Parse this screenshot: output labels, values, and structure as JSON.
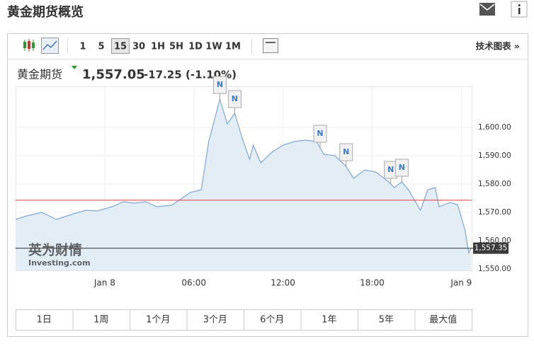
{
  "header": {
    "title": "黄金期货概览"
  },
  "toolbar": {
    "intervals": [
      "1",
      "5",
      "15",
      "30",
      "1H",
      "5H",
      "1D",
      "1W",
      "1M"
    ],
    "selected_interval": "15",
    "link": "技术图表 »"
  },
  "quote": {
    "name": "黄金期货",
    "price": "1,557.05",
    "change": "-17.25",
    "change_percent": "(-1.10%)"
  },
  "chart_data": {
    "type": "line",
    "x": [
      -6,
      -5.25,
      -4.25,
      -3.25,
      -2.25,
      -1.25,
      -0.5,
      0.5,
      1.25,
      2,
      2.75,
      3.5,
      4.5,
      5,
      5.75,
      6.5,
      7,
      7.5,
      7.75,
      8.25,
      8.75,
      9.25,
      9.75,
      10,
      10.5,
      11.25,
      12,
      12.75,
      13.5,
      14.25,
      14.75,
      15.5,
      16.25,
      16.75,
      17.5,
      18.25,
      19,
      19.5,
      20,
      20.5,
      21.25,
      21.75,
      22.25,
      22.5,
      23.25,
      23.75,
      24.25,
      24.5,
      24.65
    ],
    "series": [
      {
        "name": "黄金期货",
        "color": "#7fa7d1",
        "values": [
          1567.5,
          1568.75,
          1570,
          1567.5,
          1569.25,
          1570.75,
          1570.5,
          1572,
          1573.75,
          1573.25,
          1573.75,
          1572,
          1572.5,
          1574.25,
          1577,
          1578,
          1595,
          1605,
          1610,
          1601.25,
          1605,
          1596.25,
          1588.75,
          1593.75,
          1587.5,
          1591.25,
          1593.75,
          1595,
          1595.5,
          1595,
          1590.5,
          1590,
          1586.25,
          1582,
          1585,
          1584.25,
          1581.25,
          1578.75,
          1580.75,
          1577.5,
          1570.75,
          1578,
          1578.75,
          1572,
          1573.5,
          1572.75,
          1563.75,
          1555.75,
          1557.35
        ]
      }
    ],
    "xlim": [
      -6,
      24.7
    ],
    "xticks": [
      {
        "value": 0,
        "label": "Jan 8"
      },
      {
        "value": 6,
        "label": "06:00"
      },
      {
        "value": 12,
        "label": "12:00"
      },
      {
        "value": 18,
        "label": "18:00"
      },
      {
        "value": 24,
        "label": "Jan 9"
      }
    ],
    "ylim": [
      1549.5,
      1614.5
    ],
    "yticks": [
      {
        "value": 1550,
        "label": "1,550.00"
      },
      {
        "value": 1560,
        "label": "1,560.00"
      },
      {
        "value": 1570,
        "label": "1,570.00"
      },
      {
        "value": 1580,
        "label": "1,580.00"
      },
      {
        "value": 1590,
        "label": "1,590.00"
      },
      {
        "value": 1600,
        "label": "1,600.00"
      }
    ],
    "grid": true,
    "reference_lines": [
      {
        "value": 1574.3,
        "color": "#e05050"
      },
      {
        "value": 1557.35,
        "label": "1,557.35",
        "color": "#555555"
      }
    ],
    "annotations": [
      {
        "x": 7.75,
        "label": "N"
      },
      {
        "x": 8.75,
        "label": "N"
      },
      {
        "x": 14.5,
        "label": "N"
      },
      {
        "x": 16.25,
        "label": "N"
      },
      {
        "x": 19.25,
        "label": "N"
      },
      {
        "x": 20,
        "label": "N"
      }
    ],
    "watermark": [
      "英为财情",
      "Investing.com"
    ]
  },
  "ranges": [
    "1日",
    "1周",
    "1个月",
    "3个月",
    "6个月",
    "1年",
    "5年",
    "最大值"
  ]
}
